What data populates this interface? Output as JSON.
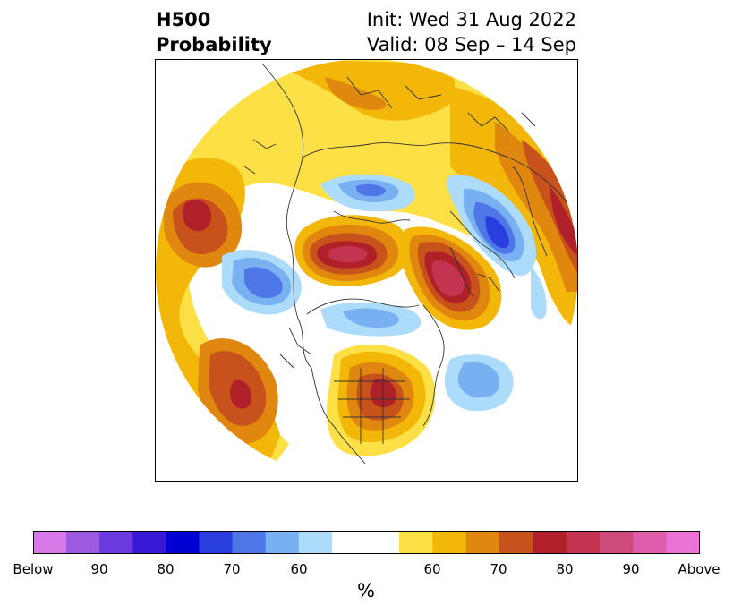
{
  "title": {
    "left_line1": "H500",
    "left_line2": "Probability",
    "right_line1": "Init: Wed 31 Aug 2022",
    "right_line2": "Valid: 08 Sep – 14 Sep"
  },
  "colorbar": {
    "unit_label": "%",
    "ticks": [
      "Below",
      "90",
      "80",
      "70",
      "60",
      "60",
      "70",
      "80",
      "90",
      "Above"
    ],
    "colors": [
      "#d878e8",
      "#9c5ae0",
      "#6a3ae0",
      "#3a18d8",
      "#0000d0",
      "#2a3ee0",
      "#4e76e6",
      "#78b0f2",
      "#acdcfa",
      "#ffffff",
      "#fde045",
      "#f2b708",
      "#e0870f",
      "#c8521c",
      "#b02028",
      "#c23450",
      "#cc4a7c",
      "#de5eac",
      "#ea72d6"
    ]
  },
  "map": {
    "projection": "polar stereographic, North Pole",
    "legend_categories": {
      "below": "blue shading",
      "above": "yellow-orange-red-pink shading"
    }
  }
}
